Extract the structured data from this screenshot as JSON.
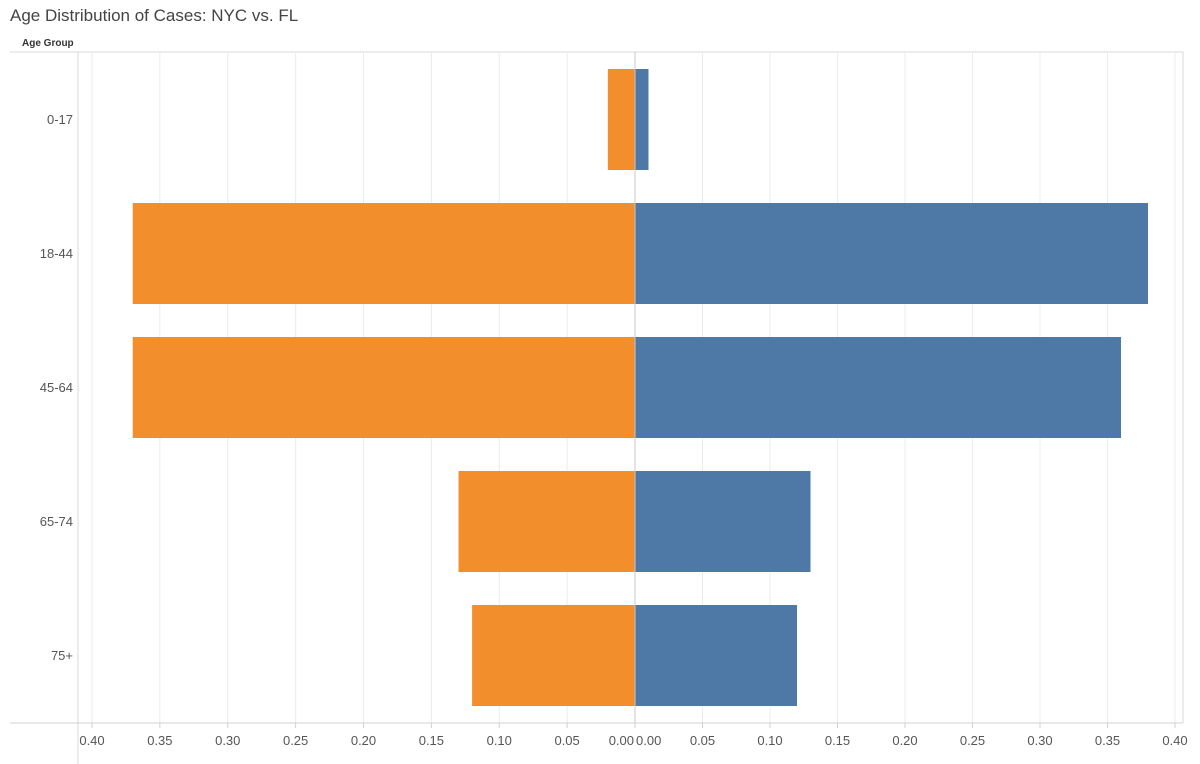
{
  "chart_data": {
    "type": "bar",
    "orientation": "horizontal-butterfly",
    "title": "Age Distribution of Cases: NYC vs. FL",
    "row_header": "Age Group",
    "categories": [
      "0-17",
      "18-44",
      "45-64",
      "65-74",
      "75+"
    ],
    "series": [
      {
        "name": "FL",
        "side": "left",
        "color": "#f28e2b",
        "values": [
          0.02,
          0.37,
          0.37,
          0.13,
          0.12
        ]
      },
      {
        "name": "NYC",
        "side": "right",
        "color": "#4e79a7",
        "values": [
          0.01,
          0.38,
          0.36,
          0.13,
          0.12
        ]
      }
    ],
    "left_axis": {
      "range": [
        0.4,
        0.0
      ],
      "ticks": [
        "0.40",
        "0.35",
        "0.30",
        "0.25",
        "0.20",
        "0.15",
        "0.10",
        "0.05",
        "0.00"
      ],
      "tick_values": [
        0.4,
        0.35,
        0.3,
        0.25,
        0.2,
        0.15,
        0.1,
        0.05,
        0.0
      ]
    },
    "right_axis": {
      "range": [
        0.0,
        0.4
      ],
      "ticks": [
        "0.00",
        "0.05",
        "0.10",
        "0.15",
        "0.20",
        "0.25",
        "0.30",
        "0.35",
        "0.40"
      ],
      "tick_values": [
        0.0,
        0.05,
        0.1,
        0.15,
        0.2,
        0.25,
        0.3,
        0.35,
        0.4
      ]
    },
    "xlabel": "",
    "ylabel": "Age Group",
    "grid": true
  }
}
